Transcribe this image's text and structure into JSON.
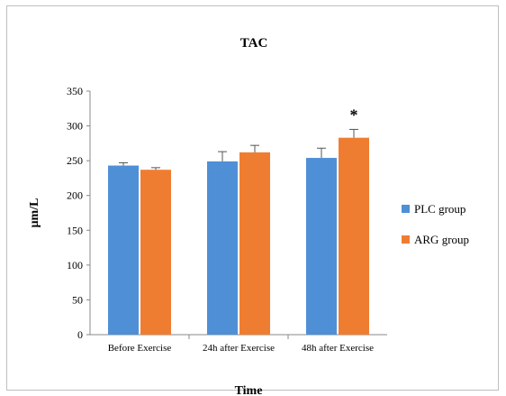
{
  "chart_data": {
    "type": "bar",
    "title": "TAC",
    "xlabel": "Time",
    "ylabel": "μm/L",
    "categories": [
      "Before Exercise",
      "24h after Exercise",
      "48h after Exercise"
    ],
    "series": [
      {
        "name": "PLC group",
        "color": "#4f8fd6",
        "values": [
          243,
          249,
          254
        ],
        "errors": [
          4,
          14,
          14
        ]
      },
      {
        "name": "ARG group",
        "color": "#ef7d31",
        "values": [
          237,
          262,
          283
        ],
        "errors": [
          3,
          10,
          12
        ]
      }
    ],
    "ylim": [
      0,
      350
    ],
    "yticks": [
      0,
      50,
      100,
      150,
      200,
      250,
      300,
      350
    ],
    "grid": false,
    "legend": "right",
    "annotations": [
      {
        "text": "*",
        "category_index": 2,
        "series_index": 1
      }
    ]
  }
}
